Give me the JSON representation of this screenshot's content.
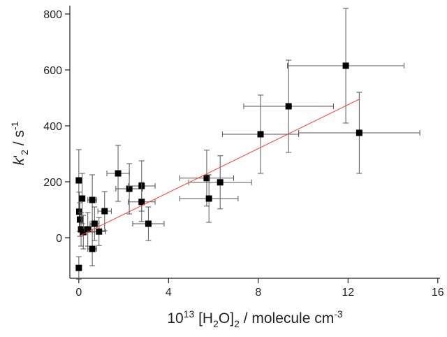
{
  "chart_data": {
    "type": "scatter",
    "x_label": [
      {
        "text": "10",
        "style": "normal"
      },
      {
        "text": "13",
        "style": "sup"
      },
      {
        "text": " [H",
        "style": "normal"
      },
      {
        "text": "2",
        "style": "sub"
      },
      {
        "text": "O]",
        "style": "normal"
      },
      {
        "text": "2",
        "style": "sub"
      },
      {
        "text": " / molecule cm",
        "style": "normal"
      },
      {
        "text": "-3",
        "style": "sup"
      }
    ],
    "y_label": [
      {
        "text": "k",
        "style": "italic"
      },
      {
        "text": "'",
        "style": "normal"
      },
      {
        "text": "2",
        "style": "sub"
      },
      {
        "text": " / s",
        "style": "normal"
      },
      {
        "text": "-1",
        "style": "sup"
      }
    ],
    "xlim": [
      -0.4,
      16.1
    ],
    "ylim": [
      -145,
      830
    ],
    "xticks": [
      0,
      4,
      8,
      12,
      16
    ],
    "yticks": [
      0,
      200,
      400,
      600,
      800
    ],
    "series": [
      {
        "color": "#000000",
        "x": [
          0,
          0,
          0.02,
          0.05,
          0.15,
          0.1,
          0.2,
          0.4,
          0.6,
          0.7,
          0.6,
          0.9,
          1.15,
          1.75,
          2.25,
          2.8,
          2.8,
          3.1,
          5.7,
          5.8,
          6.3,
          8.1,
          9.35,
          11.9,
          12.5
        ],
        "values": [
          -108,
          205,
          93,
          65,
          140,
          30,
          20,
          30,
          135,
          50,
          -40,
          22,
          95,
          230,
          175,
          185,
          128,
          50,
          213,
          140,
          198,
          370,
          470,
          615,
          375
        ],
        "x_errors": [
          0.05,
          0.05,
          0.05,
          0.05,
          0.1,
          0.1,
          0.1,
          0.15,
          0.2,
          0.2,
          0.2,
          0.3,
          0.3,
          0.5,
          0.6,
          0.6,
          0.6,
          0.7,
          1.2,
          1.3,
          1.4,
          1.7,
          2.0,
          2.6,
          2.7
        ],
        "y_errors": [
          40,
          110,
          70,
          60,
          90,
          60,
          60,
          60,
          90,
          60,
          60,
          50,
          70,
          100,
          90,
          90,
          70,
          60,
          100,
          85,
          95,
          140,
          165,
          205,
          145
        ]
      },
      {
        "type": "line",
        "color": "#ff3b30",
        "x": [
          0,
          12.5
        ],
        "values": [
          5,
          495
        ]
      }
    ]
  }
}
